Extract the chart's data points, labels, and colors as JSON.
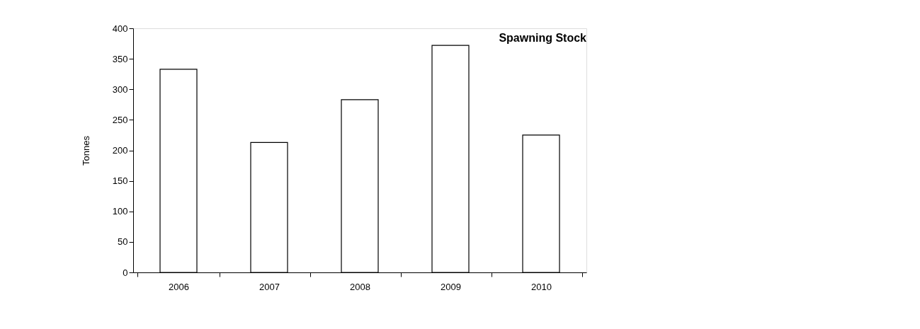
{
  "chart_data": {
    "type": "bar",
    "title": "Spawning Stock",
    "ylabel": "Tonnes",
    "categories": [
      "2006",
      "2007",
      "2008",
      "2009",
      "2010"
    ],
    "values": [
      333,
      213,
      283,
      372,
      225
    ],
    "color": "#ffffff",
    "ylim": [
      0,
      400
    ],
    "yticks": [
      0,
      50,
      100,
      150,
      200,
      250,
      300,
      350,
      400
    ],
    "grid": false
  }
}
